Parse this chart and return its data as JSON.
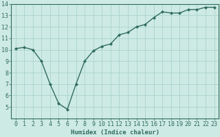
{
  "x": [
    0,
    1,
    2,
    3,
    4,
    5,
    6,
    7,
    8,
    9,
    10,
    11,
    12,
    13,
    14,
    15,
    16,
    17,
    18,
    19,
    20,
    21,
    22,
    23
  ],
  "y": [
    10.1,
    10.2,
    10.0,
    9.0,
    7.0,
    5.3,
    4.8,
    7.0,
    9.0,
    9.9,
    10.3,
    10.5,
    11.3,
    11.5,
    12.0,
    12.2,
    12.8,
    13.3,
    13.2,
    13.2,
    13.5,
    13.5,
    13.7,
    13.7
  ],
  "line_color": "#2e6b5e",
  "marker": "D",
  "marker_size": 2.2,
  "bg_color": "#ceeae4",
  "grid_color": "#a8d4cc",
  "xlabel": "Humidex (Indice chaleur)",
  "ylim": [
    4,
    14
  ],
  "xlim_min": -0.5,
  "xlim_max": 23.5,
  "yticks": [
    5,
    6,
    7,
    8,
    9,
    10,
    11,
    12,
    13,
    14
  ],
  "xticks": [
    0,
    1,
    2,
    3,
    4,
    5,
    6,
    7,
    8,
    9,
    10,
    11,
    12,
    13,
    14,
    15,
    16,
    17,
    18,
    19,
    20,
    21,
    22,
    23
  ],
  "xlabel_fontsize": 6.5,
  "tick_fontsize": 6.0,
  "axis_color": "#2e6b5e",
  "linewidth": 1.0
}
